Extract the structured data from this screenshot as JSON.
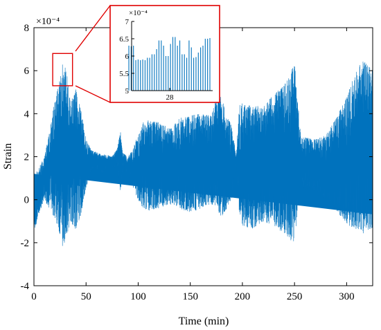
{
  "chart_data": [
    {
      "type": "line",
      "xlabel": "Time (min)",
      "ylabel": "Strain",
      "exponent_label": "×10⁻⁴",
      "xlim": [
        0,
        325
      ],
      "ylim": [
        -4,
        8
      ],
      "xticks": [
        0,
        50,
        100,
        150,
        200,
        250,
        300
      ],
      "yticks": [
        -4,
        -2,
        0,
        2,
        4,
        6,
        8
      ],
      "series_color": "#0072bd",
      "grid": false,
      "envelope": {
        "time": [
          0,
          5,
          10,
          15,
          20,
          25,
          28,
          32,
          35,
          40,
          45,
          50,
          55,
          60,
          65,
          70,
          75,
          80,
          83,
          85,
          90,
          95,
          100,
          105,
          110,
          120,
          130,
          140,
          150,
          160,
          170,
          175,
          180,
          185,
          190,
          194,
          197,
          200,
          205,
          210,
          220,
          230,
          240,
          245,
          250,
          253,
          256,
          260,
          270,
          280,
          290,
          300,
          305,
          310,
          315,
          320,
          325
        ],
        "upper": [
          1.2,
          1.5,
          2.0,
          3.2,
          4.6,
          5.6,
          6.5,
          5.8,
          4.5,
          5.2,
          4.2,
          2.8,
          2.3,
          2.2,
          2.1,
          2.1,
          2.0,
          2.4,
          3.2,
          2.2,
          2.0,
          2.4,
          3.0,
          3.6,
          3.7,
          3.6,
          3.3,
          3.8,
          3.9,
          4.0,
          3.9,
          4.7,
          4.8,
          3.9,
          3.4,
          2.0,
          4.4,
          4.5,
          4.4,
          4.4,
          4.3,
          4.9,
          5.3,
          5.8,
          6.4,
          4.8,
          2.9,
          2.9,
          2.8,
          3.0,
          3.8,
          4.8,
          5.5,
          6.2,
          6.5,
          6.3,
          6.0
        ],
        "lower": [
          -1.6,
          -0.6,
          0.0,
          -0.4,
          -0.9,
          -1.6,
          -2.3,
          -1.6,
          -1.0,
          -1.4,
          -0.7,
          0.6,
          1.3,
          1.4,
          1.2,
          1.4,
          1.4,
          1.6,
          0.4,
          1.4,
          1.1,
          0.6,
          0.0,
          -0.4,
          -0.5,
          -0.4,
          -0.2,
          -0.4,
          -0.6,
          -0.4,
          -0.2,
          -0.4,
          -0.8,
          -0.4,
          0.1,
          1.7,
          -0.6,
          -1.2,
          -1.3,
          -1.4,
          -1.0,
          -1.2,
          -1.6,
          -1.9,
          -2.0,
          -0.4,
          0.5,
          0.5,
          0.3,
          -0.1,
          -0.5,
          -1.2,
          -1.5,
          -1.4,
          -1.6,
          -1.4,
          -1.3
        ]
      },
      "zoom_box": {
        "x_range": [
          18,
          37
        ],
        "y_range": [
          5.3,
          6.8
        ]
      }
    },
    {
      "type": "line",
      "title": "",
      "exponent_label": "×10⁻⁴",
      "xtick_label": "28",
      "ylim": [
        5,
        7
      ],
      "yticks": [
        5,
        5.5,
        6,
        6.5,
        7
      ],
      "series_color": "#0072bd",
      "spikes": [
        6.3,
        6.28,
        6.3,
        5.88,
        5.9,
        5.88,
        5.9,
        5.88,
        5.95,
        5.95,
        6.05,
        6.05,
        6.2,
        6.45,
        6.45,
        6.3,
        6.0,
        6.0,
        6.35,
        6.55,
        6.55,
        6.3,
        6.45,
        6.05,
        6.05,
        5.95,
        6.45,
        6.25,
        5.95,
        5.97,
        6.1,
        6.25,
        6.3,
        6.5,
        6.5,
        6.52
      ]
    }
  ]
}
